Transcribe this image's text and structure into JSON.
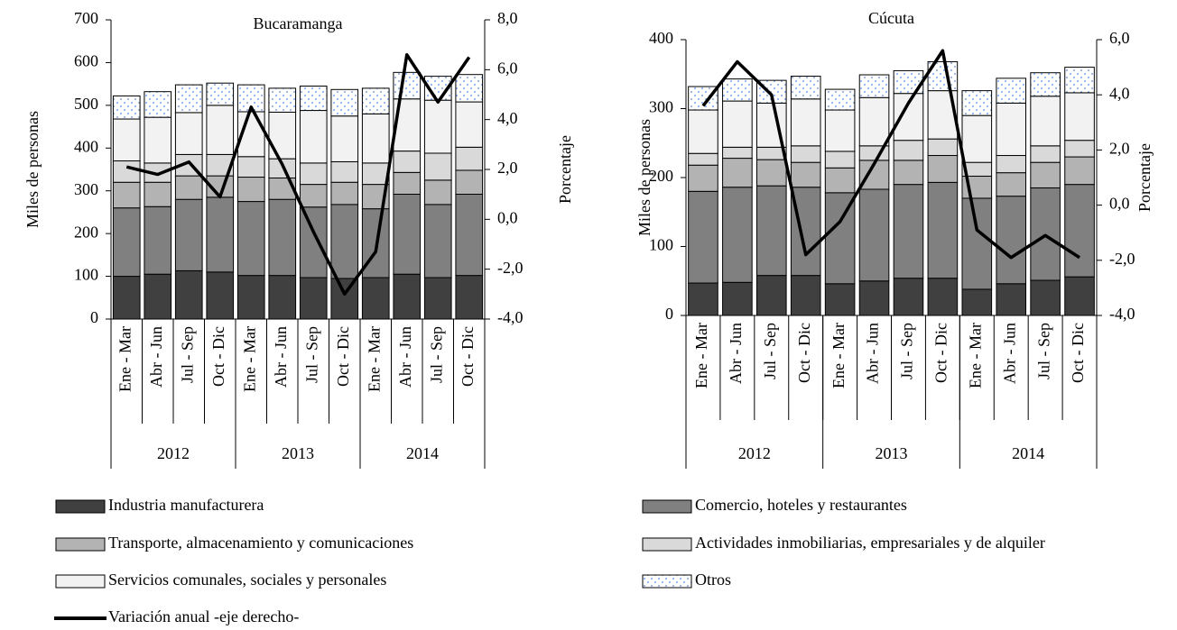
{
  "chart_data": [
    {
      "type": "bar",
      "stacked": true,
      "title": "Bucaramanga",
      "ylabel": "Miles de personas",
      "y2label": "Porcentaje",
      "categories": [
        "Ene - Mar",
        "Abr - Jun",
        "Jul - Sep",
        "Oct - Dic",
        "Ene - Mar",
        "Abr - Jun",
        "Jul - Sep",
        "Oct - Dic",
        "Ene - Mar",
        "Abr - Jun",
        "Jul - Sep",
        "Oct - Dic"
      ],
      "groups": [
        "2012",
        "2013",
        "2014"
      ],
      "ylim": [
        0,
        700
      ],
      "yticks": [
        0,
        100,
        200,
        300,
        400,
        500,
        600,
        700
      ],
      "y2lim": [
        -4,
        8
      ],
      "y2ticks": [
        {
          "value": -4,
          "label": "-4,0"
        },
        {
          "value": -2,
          "label": "-2,0"
        },
        {
          "value": 0,
          "label": "0,0"
        },
        {
          "value": 2,
          "label": "2,0"
        },
        {
          "value": 4,
          "label": "4,0"
        },
        {
          "value": 6,
          "label": "6,0"
        },
        {
          "value": 8,
          "label": "8,0"
        }
      ],
      "series": [
        {
          "name": "Industria manufacturera",
          "color": "#404040",
          "values": [
            100,
            105,
            113,
            110,
            102,
            102,
            97,
            95,
            97,
            105,
            97,
            102
          ]
        },
        {
          "name": "Comercio, hoteles y restaurantes",
          "color": "#808080",
          "values": [
            160,
            158,
            167,
            175,
            173,
            178,
            165,
            173,
            161,
            187,
            171,
            190
          ]
        },
        {
          "name": "Transporte, almacenamiento y comunicaciones",
          "color": "#b3b3b3",
          "values": [
            60,
            57,
            55,
            50,
            57,
            50,
            53,
            52,
            57,
            51,
            57,
            56
          ]
        },
        {
          "name": "Actividades inmobiliarias, empresariales y de alquiler",
          "color": "#d9d9d9",
          "values": [
            50,
            45,
            50,
            50,
            48,
            45,
            50,
            48,
            50,
            50,
            63,
            54
          ]
        },
        {
          "name": "Servicios comunales, sociales y personales",
          "color": "#f2f2f2",
          "values": [
            98,
            107,
            98,
            115,
            105,
            109,
            123,
            107,
            115,
            122,
            124,
            106
          ]
        },
        {
          "name": "Otros",
          "color": "#ffffff",
          "pattern": "dots",
          "pattern_color": "#8fb4e3",
          "values": [
            54,
            60,
            65,
            52,
            63,
            56,
            57,
            62,
            60,
            62,
            56,
            64
          ]
        },
        {
          "name": "Variación anual -eje derecho-",
          "type": "line",
          "axis": "y2",
          "color": "#000000",
          "values": [
            2.1,
            1.8,
            2.3,
            0.9,
            4.5,
            2.2,
            -0.5,
            -3.0,
            -1.3,
            6.6,
            4.7,
            6.5
          ]
        }
      ]
    },
    {
      "type": "bar",
      "stacked": true,
      "title": "Cúcuta",
      "ylabel": "Miles de personas",
      "y2label": "Porcentaje",
      "categories": [
        "Ene - Mar",
        "Abr - Jun",
        "Jul - Sep",
        "Oct - Dic",
        "Ene - Mar",
        "Abr - Jun",
        "Jul - Sep",
        "Oct - Dic",
        "Ene - Mar",
        "Abr - Jun",
        "Jul - Sep",
        "Oct - Dic"
      ],
      "groups": [
        "2012",
        "2013",
        "2014"
      ],
      "ylim": [
        0,
        400
      ],
      "yticks": [
        0,
        100,
        200,
        300,
        400
      ],
      "y2lim": [
        -4,
        6
      ],
      "y2ticks": [
        {
          "value": -4,
          "label": "-4,0"
        },
        {
          "value": -2,
          "label": "-2,0"
        },
        {
          "value": 0,
          "label": "0,0"
        },
        {
          "value": 2,
          "label": "2,0"
        },
        {
          "value": 4,
          "label": "4,0"
        },
        {
          "value": 6,
          "label": "6,0"
        }
      ],
      "series": [
        {
          "values": [
            47,
            48,
            58,
            58,
            46,
            50,
            54,
            54,
            38,
            46,
            51,
            56
          ]
        },
        {
          "values": [
            133,
            138,
            130,
            128,
            132,
            133,
            136,
            139,
            132,
            127,
            134,
            134
          ]
        },
        {
          "values": [
            38,
            42,
            38,
            36,
            36,
            42,
            35,
            39,
            32,
            34,
            37,
            40
          ]
        },
        {
          "values": [
            17,
            16,
            18,
            24,
            24,
            21,
            29,
            24,
            20,
            25,
            24,
            24
          ]
        },
        {
          "values": [
            63,
            67,
            64,
            68,
            60,
            70,
            68,
            70,
            68,
            76,
            72,
            69
          ]
        },
        {
          "values": [
            34,
            32,
            33,
            33,
            30,
            33,
            33,
            42,
            36,
            36,
            34,
            37
          ]
        },
        {
          "axis": "y2",
          "type": "line",
          "values": [
            3.6,
            5.2,
            4.0,
            -1.8,
            -0.6,
            1.5,
            3.7,
            5.6,
            -0.9,
            -1.9,
            -1.1,
            -1.9
          ]
        }
      ]
    }
  ]
}
